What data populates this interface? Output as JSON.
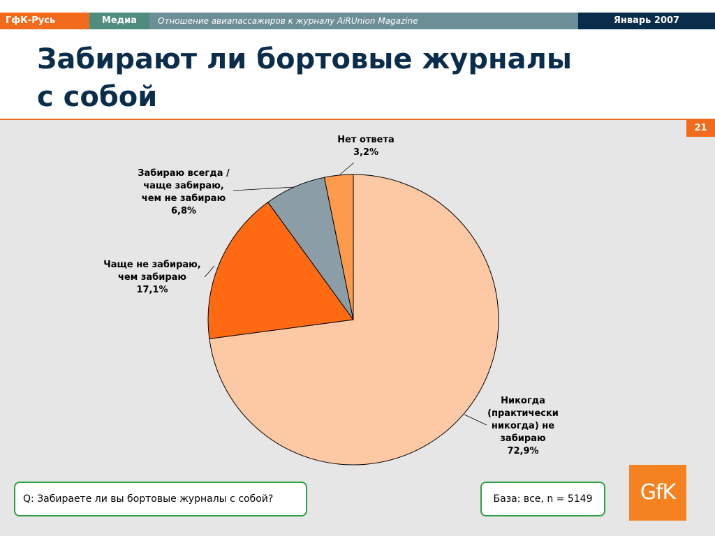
{
  "header": {
    "brand": "ГфК-Русь",
    "section": "Медиа",
    "subtitle": "Отношение авиапассажиров к журналу AiRUnion Magazine",
    "date": "Январь 2007"
  },
  "title": {
    "line1": "Забирают ли бортовые журналы",
    "line2": "с собой"
  },
  "page_number": "21",
  "question": "Q: Забираете ли вы бортовые журналы с собой?",
  "base": "База: все, n = 5149",
  "logo_text": "GfK",
  "colors": {
    "brand_orange": "#f26b1d",
    "dark_blue": "#0b2d4c",
    "green_border": "#2ea043",
    "logo_orange": "#f58220"
  },
  "chart_data": {
    "type": "pie",
    "slices": [
      {
        "label": [
          "Никогда",
          "(практически",
          "никогда) не",
          "забираю",
          "72,9%"
        ],
        "value": 72.9,
        "color": "#fdc9a4"
      },
      {
        "label": [
          "Чаще не забираю,",
          "чем забираю",
          "17,1%"
        ],
        "value": 17.1,
        "color": "#ff6a13"
      },
      {
        "label": [
          "Забираю всегда /",
          "чаще забираю,",
          "чем не забираю",
          "6,8%"
        ],
        "value": 6.8,
        "color": "#8b9ea7"
      },
      {
        "label": [
          "Нет ответа",
          "3,2%"
        ],
        "value": 3.2,
        "color": "#fd9a4c"
      }
    ]
  }
}
